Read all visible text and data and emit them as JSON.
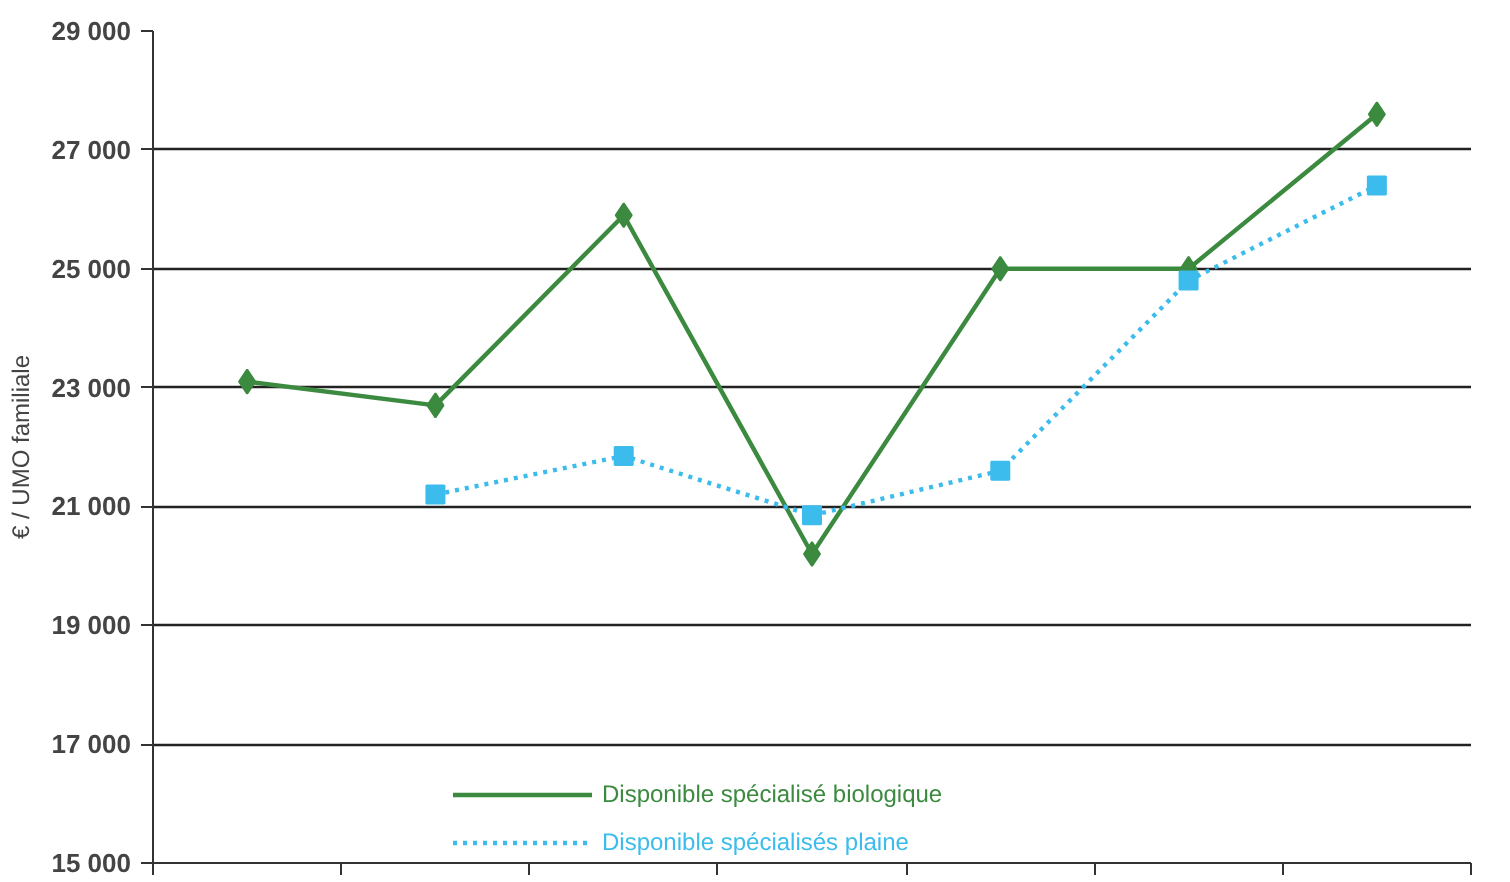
{
  "chart_data": {
    "type": "line",
    "ylabel": "€ / UMO familiale",
    "categories": [
      null,
      null,
      null,
      null,
      null,
      null,
      null
    ],
    "ylim": [
      15000,
      29000
    ],
    "yticks": [
      {
        "value": 15000,
        "label": "15 000"
      },
      {
        "value": 17000,
        "label": "17 000"
      },
      {
        "value": 19000,
        "label": "19 000"
      },
      {
        "value": 21000,
        "label": "21 000"
      },
      {
        "value": 23000,
        "label": "23 000"
      },
      {
        "value": 25000,
        "label": "25 000"
      },
      {
        "value": 27000,
        "label": "27 000"
      },
      {
        "value": 29000,
        "label": "29 000"
      }
    ],
    "grid": "y",
    "legend": "bottom",
    "series": [
      {
        "name": "Disponible spécialisé biologique",
        "color": "#3b8a3f",
        "marker": "diamond",
        "line_style": "solid",
        "values": [
          23100,
          22700,
          25900,
          20200,
          25000,
          25000,
          27600
        ]
      },
      {
        "name": "Disponible spécialisés plaine",
        "color": "#3cbcec",
        "marker": "square",
        "line_style": "dotted",
        "values": [
          null,
          21200,
          21850,
          20850,
          21600,
          24800,
          26400
        ]
      }
    ]
  }
}
